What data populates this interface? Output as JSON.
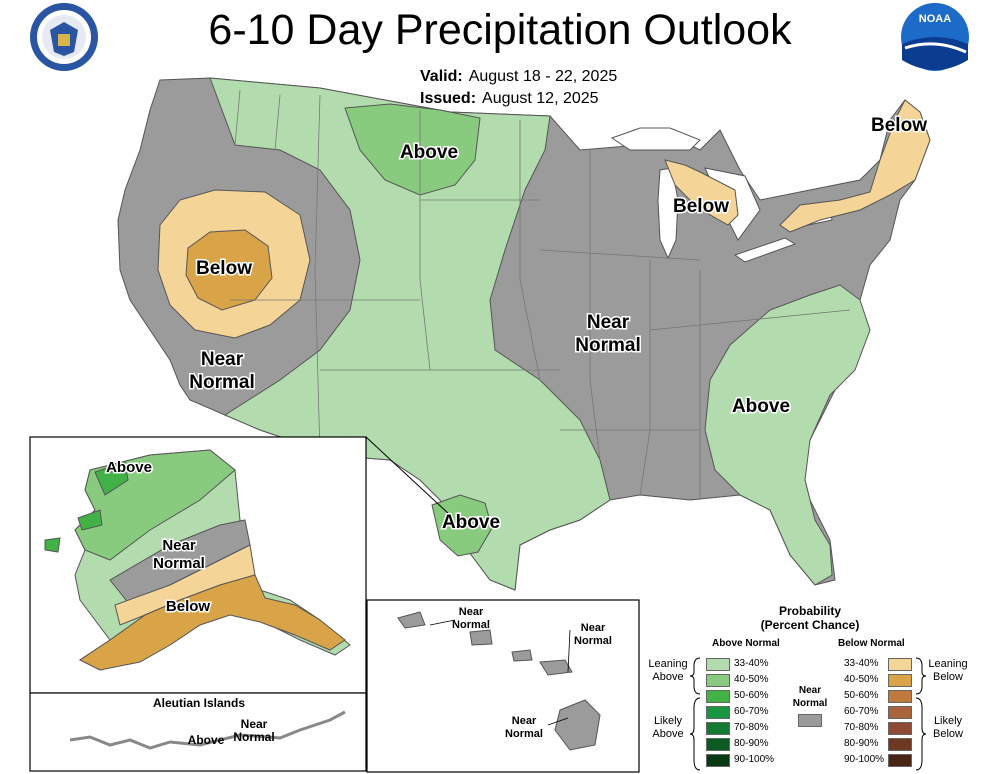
{
  "title": "6-10 Day Precipitation Outlook",
  "valid": {
    "label": "Valid:",
    "value": "August 18 - 22, 2025"
  },
  "issued": {
    "label": "Issued:",
    "value": "August 12, 2025"
  },
  "logos": {
    "left": {
      "icon": "department-of-commerce-seal-icon",
      "text": "DEPARTMENT OF COMMERCE · UNITED STATES OF AMERICA"
    },
    "right": {
      "icon": "noaa-logo-icon",
      "text": "NOAA"
    }
  },
  "colors": {
    "near_normal": "#9b9b9b",
    "above_33_40": "#b3dcae",
    "above_40_50": "#88cb7e",
    "above_50_60": "#42b146",
    "above_60_70": "#1a9641",
    "above_70_80": "#157a31",
    "above_80_90": "#0e5a23",
    "above_90_100": "#073a13",
    "below_33_40": "#f5d597",
    "below_40_50": "#d9a447",
    "below_50_60": "#c07a3e",
    "below_60_70": "#a9643c",
    "below_70_80": "#8e4a34",
    "below_80_90": "#6f3820",
    "below_90_100": "#4a2414",
    "border": "#555555"
  },
  "map_labels": {
    "conus_above_north": "Above",
    "conus_below_west": "Below",
    "conus_near_west_1": "Near",
    "conus_near_west_2": "Normal",
    "conus_near_central_1": "Near",
    "conus_near_central_2": "Normal",
    "conus_above_southeast": "Above",
    "conus_above_texas": "Above",
    "conus_below_michigan": "Below",
    "conus_below_northeast": "Below",
    "ak_above": "Above",
    "ak_near_1": "Near",
    "ak_near_2": "Normal",
    "ak_below": "Below",
    "aleutian_title": "Aleutian Islands",
    "aleutian_above": "Above",
    "aleutian_near_1": "Near",
    "aleutian_near_2": "Normal",
    "hi_near_a_1": "Near",
    "hi_near_a_2": "Normal",
    "hi_near_b_1": "Near",
    "hi_near_b_2": "Normal",
    "hi_near_c_1": "Near",
    "hi_near_c_2": "Normal"
  },
  "legend": {
    "title_1": "Probability",
    "title_2": "(Percent Chance)",
    "above_header": "Above Normal",
    "below_header": "Below Normal",
    "near_label_1": "Near",
    "near_label_2": "Normal",
    "leaning_above_1": "Leaning",
    "leaning_above_2": "Above",
    "likely_above_1": "Likely",
    "likely_above_2": "Above",
    "leaning_below_1": "Leaning",
    "leaning_below_2": "Below",
    "likely_below_1": "Likely",
    "likely_below_2": "Below",
    "above": [
      {
        "range": "33-40%",
        "color": "#b3dcae"
      },
      {
        "range": "40-50%",
        "color": "#88cb7e"
      },
      {
        "range": "50-60%",
        "color": "#42b146"
      },
      {
        "range": "60-70%",
        "color": "#1a9641"
      },
      {
        "range": "70-80%",
        "color": "#157a31"
      },
      {
        "range": "80-90%",
        "color": "#0e5a23"
      },
      {
        "range": "90-100%",
        "color": "#073a13"
      }
    ],
    "below": [
      {
        "range": "33-40%",
        "color": "#f5d597"
      },
      {
        "range": "40-50%",
        "color": "#d9a447"
      },
      {
        "range": "50-60%",
        "color": "#c07a3e"
      },
      {
        "range": "60-70%",
        "color": "#a9643c"
      },
      {
        "range": "70-80%",
        "color": "#8e4a34"
      },
      {
        "range": "80-90%",
        "color": "#6f3820"
      },
      {
        "range": "90-100%",
        "color": "#4a2414"
      }
    ]
  }
}
